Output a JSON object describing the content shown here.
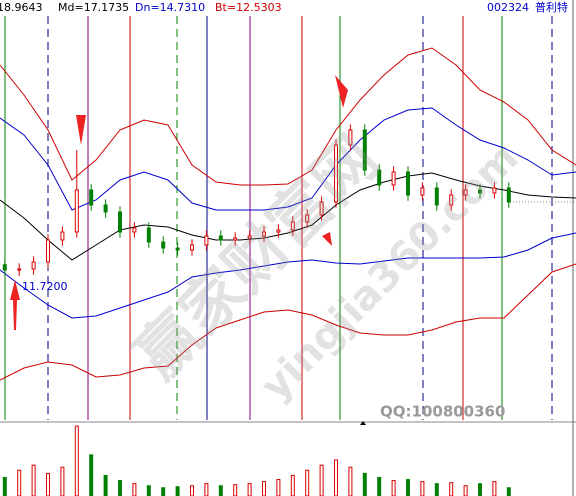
{
  "header": {
    "up": "18.9643",
    "md": "Md=17.1735",
    "dn": "Dn=14.7310",
    "bt": "Bt=12.5303",
    "code": "002324",
    "name": "普利特"
  },
  "min_label": "11.7200",
  "qq": "QQ:100800360",
  "watermark": [
    "赢家财富网",
    "yingjia360.com"
  ],
  "chart_data": {
    "type": "candlestick",
    "xlim": [
      0,
      120
    ],
    "ylim": [
      1.63,
      29.91
    ],
    "volume_lim": [
      0,
      70
    ],
    "x": [
      0,
      5,
      10,
      15,
      20,
      25,
      30,
      35,
      40,
      45,
      50,
      55,
      60,
      65,
      70,
      75,
      80,
      85,
      90,
      95,
      100,
      105,
      110,
      115,
      120
    ],
    "series": [
      {
        "color": "#cc0000",
        "values": [
          26.48,
          24.38,
          21.93,
          18.43,
          19.83,
          21.93,
          22.63,
          22.28,
          19.48,
          18.29,
          18.08,
          18.08,
          18.15,
          19.13,
          21.93,
          24.03,
          25.78,
          27.18,
          27.67,
          26.48,
          24.73,
          23.89,
          22.63,
          20.53,
          19.48
        ]
      },
      {
        "color": "#0000cc",
        "values": [
          22.77,
          21.58,
          19.48,
          16.33,
          17.03,
          18.43,
          18.99,
          18.43,
          16.82,
          16.33,
          16.33,
          16.33,
          16.54,
          17.17,
          19.48,
          21.23,
          22.63,
          23.33,
          23.47,
          22.28,
          21.23,
          20.67,
          19.83,
          18.78,
          18.99
        ]
      },
      {
        "color": "#000000",
        "values": [
          17.03,
          15.77,
          14.23,
          12.83,
          13.88,
          14.93,
          15.28,
          15.14,
          14.58,
          14.23,
          14.23,
          14.37,
          14.72,
          15.28,
          16.68,
          17.73,
          18.29,
          18.71,
          18.92,
          18.43,
          18.01,
          17.73,
          17.38,
          17.24,
          17.17
        ]
      },
      {
        "color": "#0000cc",
        "values": [
          12.13,
          10.87,
          9.68,
          8.77,
          8.91,
          9.47,
          10.03,
          10.59,
          11.64,
          11.92,
          12.13,
          12.41,
          12.69,
          12.83,
          12.62,
          12.55,
          12.76,
          12.97,
          12.97,
          12.97,
          12.97,
          13.04,
          13.53,
          14.37,
          14.72
        ]
      },
      {
        "color": "#cc0000",
        "values": [
          4.43,
          5.27,
          5.69,
          5.48,
          4.64,
          4.78,
          5.27,
          5.41,
          6.88,
          8.07,
          8.63,
          9.19,
          9.33,
          8.98,
          8.28,
          7.72,
          7.58,
          7.58,
          7.93,
          8.49,
          8.77,
          8.77,
          10.38,
          11.99,
          12.55
        ]
      }
    ],
    "up_color": "#dd0000",
    "down_color": "#008000",
    "candles": {
      "x": [
        1,
        4,
        7,
        10,
        13,
        16,
        19,
        22,
        25,
        28,
        31,
        34,
        37,
        40,
        43,
        46,
        49,
        52,
        55,
        58,
        61,
        64,
        67,
        70,
        73,
        76,
        79,
        82,
        85,
        88,
        91,
        94,
        97,
        100,
        103,
        106
      ],
      "open": [
        12.5,
        12.13,
        12.2,
        12.69,
        14.23,
        14.79,
        17.73,
        16.68,
        16.19,
        14.79,
        15.07,
        14.09,
        13.67,
        13.53,
        13.88,
        14.51,
        14.23,
        14.37,
        14.51,
        14.79,
        14.93,
        15.49,
        15.98,
        16.89,
        20.88,
        21.93,
        19.13,
        18.08,
        18.99,
        17.38,
        17.87,
        16.68,
        17.38,
        17.73,
        17.52,
        17.87
      ],
      "high": [
        12.9,
        12.6,
        13.09,
        14.63,
        15.19,
        20.53,
        18.13,
        17.08,
        16.59,
        15.47,
        15.47,
        14.49,
        14.07,
        14.28,
        14.91,
        14.91,
        14.77,
        14.91,
        15.19,
        15.33,
        15.89,
        16.38,
        17.29,
        21.28,
        22.33,
        22.33,
        19.53,
        19.39,
        19.39,
        18.27,
        18.27,
        17.78,
        18.13,
        18.13,
        18.27,
        18.27
      ],
      "low": [
        11.73,
        11.72,
        11.8,
        12.29,
        13.83,
        14.39,
        16.28,
        15.79,
        14.39,
        14.39,
        13.69,
        13.27,
        13.13,
        13.13,
        13.48,
        13.83,
        13.83,
        13.97,
        14.11,
        14.39,
        14.53,
        15.09,
        15.58,
        16.49,
        20.48,
        18.73,
        17.68,
        17.68,
        16.98,
        16.98,
        16.28,
        16.28,
        16.98,
        17.12,
        17.12,
        16.49
      ],
      "close": [
        12.13,
        12.2,
        12.69,
        14.23,
        14.79,
        17.73,
        16.68,
        16.19,
        14.79,
        15.07,
        14.09,
        13.67,
        13.53,
        13.88,
        14.51,
        14.23,
        14.37,
        14.51,
        14.79,
        14.93,
        15.49,
        15.98,
        16.89,
        20.88,
        21.93,
        19.13,
        18.08,
        18.99,
        17.38,
        17.87,
        16.68,
        17.38,
        17.73,
        17.52,
        17.87,
        16.89
      ],
      "volume": [
        18,
        25,
        30,
        22,
        28,
        68,
        40,
        20,
        15,
        12,
        10,
        8,
        9,
        10,
        12,
        10,
        11,
        12,
        14,
        16,
        20,
        25,
        30,
        35,
        28,
        22,
        18,
        15,
        16,
        14,
        12,
        13,
        10,
        12,
        14,
        8
      ]
    }
  }
}
